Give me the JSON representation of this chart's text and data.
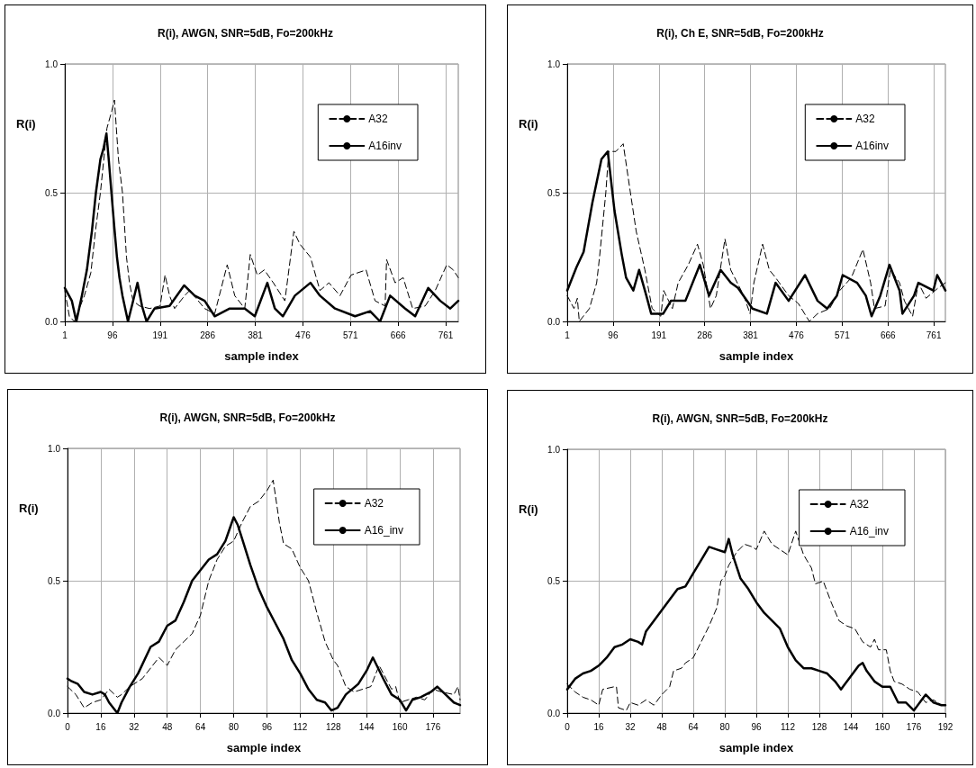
{
  "chart_data": [
    {
      "type": "line",
      "title": "R(i), AWGN, SNR=5dB, Fo=200kHz",
      "xlabel": "sample index",
      "ylabel": "R(i)",
      "xlim": [
        1,
        786
      ],
      "xticks": [
        1,
        96,
        191,
        286,
        381,
        476,
        571,
        666,
        761
      ],
      "ylim": [
        0,
        1
      ],
      "yticks": [
        {
          "value": 0,
          "label": "0.0"
        },
        {
          "value": 0.5,
          "label": "0.5"
        },
        {
          "value": 1,
          "label": "1.0"
        }
      ],
      "grid": true,
      "legend": "top right",
      "marker": "none",
      "series": [
        {
          "name": "A32",
          "color": "#000000",
          "line_style": "dashed",
          "x": [
            1,
            10,
            20,
            40,
            53,
            62,
            72,
            85,
            95,
            100,
            108,
            116,
            124,
            130,
            137,
            150,
            170,
            191,
            201,
            210,
            220,
            240,
            250,
            280,
            300,
            325,
            340,
            360,
            371,
            385,
            399,
            417,
            440,
            458,
            470,
            491,
            510,
            528,
            550,
            572,
            602,
            620,
            640,
            643,
            660,
            676,
            695,
            720,
            740,
            763,
            776,
            786
          ],
          "values": [
            0.12,
            0.02,
            0.0,
            0.1,
            0.19,
            0.35,
            0.5,
            0.75,
            0.82,
            0.86,
            0.63,
            0.5,
            0.25,
            0.15,
            0.08,
            0.06,
            0.05,
            0.06,
            0.18,
            0.1,
            0.05,
            0.1,
            0.12,
            0.05,
            0.03,
            0.22,
            0.1,
            0.05,
            0.26,
            0.18,
            0.2,
            0.15,
            0.08,
            0.35,
            0.3,
            0.25,
            0.12,
            0.15,
            0.1,
            0.18,
            0.2,
            0.08,
            0.06,
            0.24,
            0.15,
            0.17,
            0.05,
            0.06,
            0.12,
            0.22,
            0.2,
            0.17
          ]
        },
        {
          "name": "A16inv",
          "color": "#000000",
          "line_style": "solid",
          "x": [
            1,
            15,
            24,
            35,
            45,
            55,
            63,
            72,
            78,
            84,
            89,
            94,
            100,
            105,
            110,
            116,
            127,
            136,
            146,
            155,
            164,
            180,
            210,
            239,
            260,
            280,
            300,
            330,
            360,
            380,
            405,
            420,
            436,
            460,
            491,
            510,
            540,
            580,
            610,
            630,
            650,
            680,
            700,
            726,
            750,
            770,
            786
          ],
          "values": [
            0.13,
            0.08,
            0.0,
            0.1,
            0.2,
            0.35,
            0.5,
            0.63,
            0.67,
            0.73,
            0.62,
            0.5,
            0.36,
            0.25,
            0.17,
            0.1,
            0.0,
            0.07,
            0.15,
            0.06,
            0.0,
            0.05,
            0.06,
            0.14,
            0.1,
            0.08,
            0.02,
            0.05,
            0.05,
            0.02,
            0.15,
            0.05,
            0.02,
            0.1,
            0.15,
            0.1,
            0.05,
            0.02,
            0.04,
            0.0,
            0.1,
            0.05,
            0.02,
            0.13,
            0.08,
            0.05,
            0.08
          ]
        }
      ]
    },
    {
      "type": "line",
      "title": "R(i), Ch E, SNR=5dB, Fo=200kHz",
      "xlabel": "sample index",
      "ylabel": "R(i)",
      "xlim": [
        1,
        785
      ],
      "xticks": [
        1,
        96,
        191,
        286,
        381,
        476,
        571,
        666,
        761
      ],
      "ylim": [
        0,
        1
      ],
      "yticks": [
        {
          "value": 0,
          "label": "0.0"
        },
        {
          "value": 0.5,
          "label": "0.5"
        },
        {
          "value": 1,
          "label": "1.0"
        }
      ],
      "grid": true,
      "legend": "top right",
      "marker": "none",
      "series": [
        {
          "name": "A32",
          "color": "#000000",
          "line_style": "dashed",
          "x": [
            1,
            15,
            22,
            26,
            47,
            62,
            68,
            81,
            87,
            102,
            117,
            132,
            144,
            162,
            177,
            195,
            201,
            219,
            231,
            252,
            271,
            283,
            298,
            310,
            328,
            340,
            367,
            380,
            388,
            406,
            420,
            433,
            460,
            480,
            503,
            520,
            545,
            566,
            590,
            614,
            630,
            638,
            660,
            671,
            690,
            700,
            717,
            729,
            745,
            770,
            785
          ],
          "values": [
            0.1,
            0.05,
            0.09,
            0.0,
            0.05,
            0.15,
            0.25,
            0.5,
            0.66,
            0.66,
            0.69,
            0.5,
            0.35,
            0.2,
            0.05,
            0.02,
            0.12,
            0.05,
            0.15,
            0.22,
            0.3,
            0.22,
            0.05,
            0.1,
            0.32,
            0.2,
            0.1,
            0.03,
            0.15,
            0.3,
            0.2,
            0.17,
            0.1,
            0.07,
            0.0,
            0.03,
            0.05,
            0.12,
            0.17,
            0.28,
            0.15,
            0.05,
            0.06,
            0.2,
            0.15,
            0.08,
            0.02,
            0.15,
            0.09,
            0.13,
            0.15
          ]
        },
        {
          "name": "A16inv",
          "color": "#000000",
          "line_style": "solid",
          "x": [
            1,
            20,
            35,
            53,
            72,
            85,
            99,
            114,
            123,
            138,
            150,
            165,
            175,
            200,
            216,
            246,
            276,
            295,
            319,
            340,
            355,
            385,
            415,
            433,
            460,
            494,
            520,
            540,
            560,
            572,
            602,
            620,
            632,
            650,
            669,
            690,
            696,
            720,
            729,
            760,
            768,
            785
          ],
          "values": [
            0.12,
            0.21,
            0.27,
            0.46,
            0.63,
            0.66,
            0.43,
            0.26,
            0.17,
            0.12,
            0.2,
            0.1,
            0.03,
            0.03,
            0.08,
            0.08,
            0.22,
            0.1,
            0.2,
            0.15,
            0.13,
            0.05,
            0.03,
            0.15,
            0.08,
            0.18,
            0.08,
            0.05,
            0.1,
            0.18,
            0.15,
            0.1,
            0.02,
            0.1,
            0.22,
            0.12,
            0.03,
            0.1,
            0.15,
            0.12,
            0.18,
            0.12
          ]
        }
      ]
    },
    {
      "type": "line",
      "title": "R(i), AWGN, SNR=5dB, Fo=200kHz",
      "xlabel": "sample index",
      "ylabel": "R(i)",
      "xlim": [
        0,
        189
      ],
      "xticks": [
        0,
        16,
        32,
        48,
        64,
        80,
        96,
        112,
        128,
        144,
        160,
        176
      ],
      "ylim": [
        0,
        1
      ],
      "yticks": [
        {
          "value": 0,
          "label": "0.0"
        },
        {
          "value": 0.5,
          "label": "0.5"
        },
        {
          "value": 1,
          "label": "1.0"
        }
      ],
      "grid": true,
      "legend": "top right",
      "marker": "none",
      "series": [
        {
          "name": "A32",
          "color": "#000000",
          "line_style": "dashed",
          "x": [
            0,
            4,
            8,
            12,
            16,
            20,
            24,
            26,
            30,
            36,
            44,
            48,
            52,
            56,
            60,
            64,
            68,
            72,
            76,
            80,
            84,
            88,
            92,
            96,
            99,
            102,
            104,
            108,
            112,
            116,
            120,
            124,
            128,
            130,
            134,
            138,
            142,
            146,
            150,
            154,
            156,
            158,
            160,
            164,
            168,
            172,
            176,
            180,
            186,
            188,
            189
          ],
          "values": [
            0.1,
            0.07,
            0.02,
            0.04,
            0.05,
            0.09,
            0.06,
            0.07,
            0.1,
            0.13,
            0.21,
            0.18,
            0.24,
            0.27,
            0.3,
            0.37,
            0.5,
            0.58,
            0.63,
            0.65,
            0.72,
            0.78,
            0.8,
            0.84,
            0.88,
            0.72,
            0.64,
            0.62,
            0.55,
            0.5,
            0.38,
            0.27,
            0.2,
            0.18,
            0.1,
            0.08,
            0.09,
            0.1,
            0.18,
            0.12,
            0.09,
            0.1,
            0.04,
            0.05,
            0.06,
            0.05,
            0.09,
            0.08,
            0.07,
            0.1,
            0.05
          ]
        },
        {
          "name": "A16_inv",
          "color": "#000000",
          "line_style": "solid",
          "x": [
            0,
            2,
            5,
            8,
            12,
            16,
            18,
            20,
            24,
            26,
            30,
            34,
            40,
            44,
            48,
            52,
            56,
            60,
            64,
            68,
            72,
            76,
            80,
            82,
            84,
            88,
            92,
            96,
            100,
            104,
            108,
            112,
            116,
            120,
            124,
            127,
            130,
            134,
            140,
            144,
            147,
            152,
            156,
            160,
            163,
            166,
            170,
            175,
            178,
            182,
            186,
            189
          ],
          "values": [
            0.13,
            0.12,
            0.11,
            0.08,
            0.07,
            0.08,
            0.07,
            0.04,
            0.0,
            0.04,
            0.1,
            0.15,
            0.25,
            0.27,
            0.33,
            0.35,
            0.42,
            0.5,
            0.54,
            0.58,
            0.6,
            0.65,
            0.74,
            0.71,
            0.66,
            0.56,
            0.47,
            0.4,
            0.34,
            0.28,
            0.2,
            0.15,
            0.09,
            0.05,
            0.04,
            0.01,
            0.02,
            0.07,
            0.11,
            0.16,
            0.21,
            0.13,
            0.07,
            0.05,
            0.01,
            0.05,
            0.06,
            0.08,
            0.1,
            0.07,
            0.04,
            0.03
          ]
        }
      ]
    },
    {
      "type": "line",
      "title": "R(i), AWGN, SNR=5dB, Fo=200kHz",
      "xlabel": "sample index",
      "ylabel": "R(i)",
      "xlim": [
        0,
        192
      ],
      "xticks": [
        0,
        16,
        32,
        48,
        64,
        80,
        96,
        112,
        128,
        144,
        160,
        176,
        192
      ],
      "ylim": [
        0,
        1
      ],
      "yticks": [
        {
          "value": 0,
          "label": "0.0"
        },
        {
          "value": 0.5,
          "label": "0.5"
        },
        {
          "value": 1,
          "label": "1.0"
        }
      ],
      "grid": true,
      "legend": "top right",
      "marker": "none",
      "series": [
        {
          "name": "A32",
          "color": "#000000",
          "line_style": "dashed",
          "x": [
            0,
            4,
            8,
            12,
            16,
            18,
            24,
            25,
            26,
            30,
            32,
            36,
            40,
            44,
            48,
            52,
            54,
            58,
            60,
            64,
            68,
            72,
            76,
            78,
            80,
            82,
            86,
            90,
            94,
            96,
            100,
            104,
            108,
            112,
            116,
            120,
            124,
            126,
            130,
            134,
            138,
            142,
            146,
            150,
            154,
            156,
            158,
            162,
            164,
            166,
            170,
            174,
            178,
            182,
            186,
            190,
            192
          ],
          "values": [
            0.11,
            0.08,
            0.06,
            0.05,
            0.03,
            0.09,
            0.1,
            0.1,
            0.02,
            0.01,
            0.04,
            0.03,
            0.05,
            0.03,
            0.07,
            0.1,
            0.16,
            0.17,
            0.19,
            0.21,
            0.27,
            0.33,
            0.4,
            0.5,
            0.52,
            0.56,
            0.61,
            0.64,
            0.63,
            0.62,
            0.69,
            0.64,
            0.62,
            0.6,
            0.69,
            0.6,
            0.55,
            0.49,
            0.5,
            0.42,
            0.35,
            0.33,
            0.32,
            0.27,
            0.25,
            0.28,
            0.24,
            0.24,
            0.16,
            0.12,
            0.11,
            0.09,
            0.08,
            0.04,
            0.05,
            0.03,
            0.03
          ]
        },
        {
          "name": "A16_inv",
          "color": "#000000",
          "line_style": "solid",
          "x": [
            0,
            2,
            4,
            8,
            12,
            16,
            20,
            24,
            28,
            32,
            36,
            38,
            40,
            44,
            48,
            52,
            56,
            60,
            64,
            68,
            72,
            76,
            80,
            82,
            84,
            88,
            92,
            96,
            100,
            104,
            108,
            112,
            116,
            120,
            124,
            128,
            132,
            136,
            139,
            144,
            148,
            150,
            152,
            156,
            160,
            164,
            168,
            172,
            176,
            180,
            182,
            186,
            190,
            192
          ],
          "values": [
            0.09,
            0.11,
            0.13,
            0.15,
            0.16,
            0.18,
            0.21,
            0.25,
            0.26,
            0.28,
            0.27,
            0.26,
            0.31,
            0.35,
            0.39,
            0.43,
            0.47,
            0.48,
            0.53,
            0.58,
            0.63,
            0.62,
            0.61,
            0.66,
            0.6,
            0.51,
            0.47,
            0.42,
            0.38,
            0.35,
            0.32,
            0.25,
            0.2,
            0.17,
            0.17,
            0.16,
            0.15,
            0.12,
            0.09,
            0.14,
            0.18,
            0.19,
            0.16,
            0.12,
            0.1,
            0.1,
            0.04,
            0.04,
            0.01,
            0.05,
            0.07,
            0.04,
            0.03,
            0.03
          ]
        }
      ]
    }
  ]
}
